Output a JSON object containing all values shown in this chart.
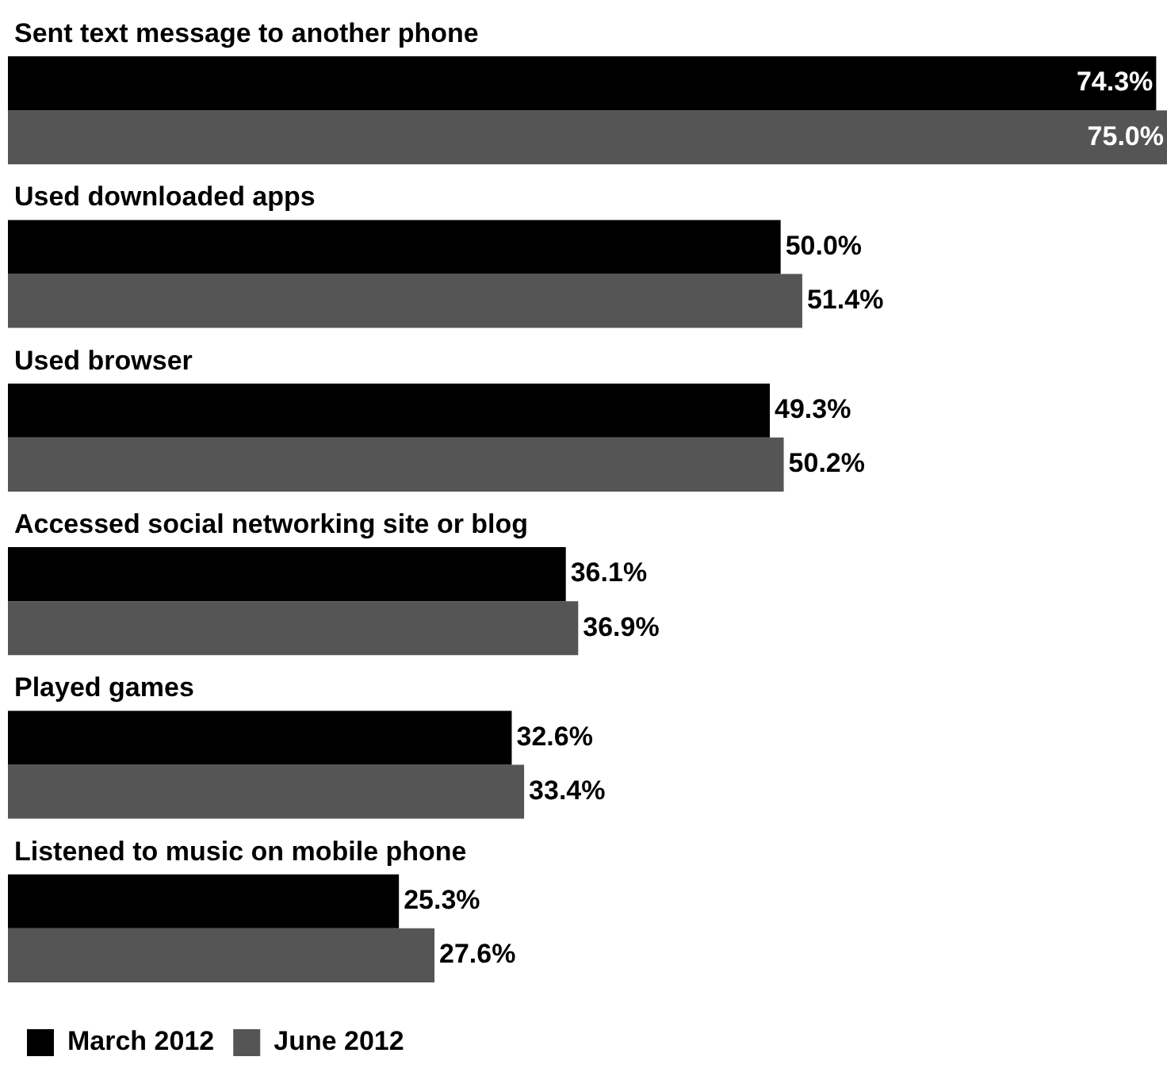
{
  "chart_data": {
    "type": "bar",
    "orientation": "horizontal",
    "legend": "bottom left",
    "categories": [
      "Sent text message to another phone",
      "Used downloaded apps",
      "Used browser",
      "Accessed social networking site or blog",
      "Played games",
      "Listened to music on mobile phone"
    ],
    "series": [
      {
        "name": "March 2012",
        "color": "#000000",
        "values": [
          74.3,
          50.0,
          49.3,
          36.1,
          32.6,
          25.3
        ],
        "value_labels": [
          "74.3%",
          "50.0%",
          "49.3%",
          "36.1%",
          "32.6%",
          "25.3%"
        ]
      },
      {
        "name": "June 2012",
        "color": "#555555",
        "values": [
          75.0,
          51.4,
          50.2,
          36.9,
          33.4,
          27.6
        ],
        "value_labels": [
          "75.0%",
          "51.4%",
          "50.2%",
          "36.9%",
          "33.4%",
          "27.6%"
        ]
      }
    ]
  }
}
